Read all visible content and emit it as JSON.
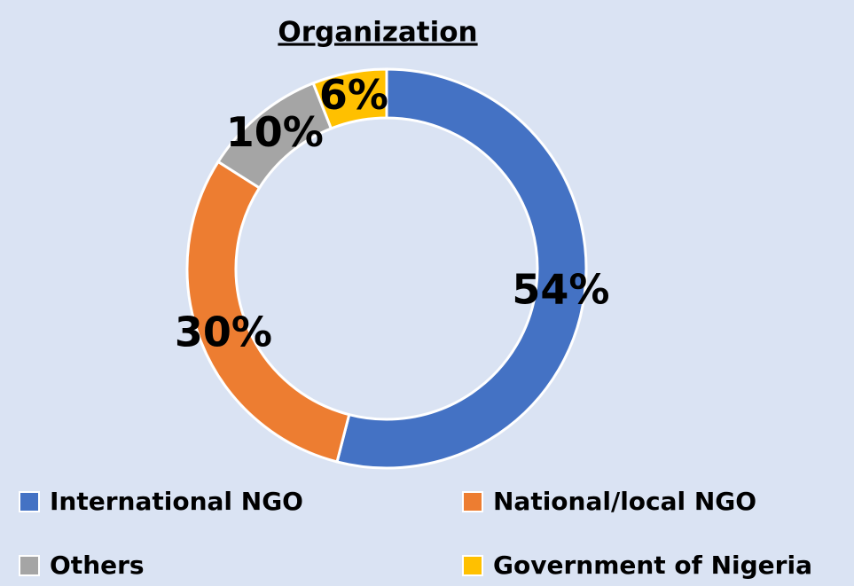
{
  "chart_data": {
    "type": "donut",
    "title": "Organization",
    "categories": [
      "International NGO",
      "National/local NGO",
      "Others",
      "Government of Nigeria"
    ],
    "values": [
      54,
      30,
      10,
      6
    ],
    "value_labels": [
      "54%",
      "30%",
      "10%",
      "6%"
    ],
    "colors": [
      "#4472c4",
      "#ed7d31",
      "#a5a5a5",
      "#ffc000"
    ],
    "legend": "bottom"
  }
}
